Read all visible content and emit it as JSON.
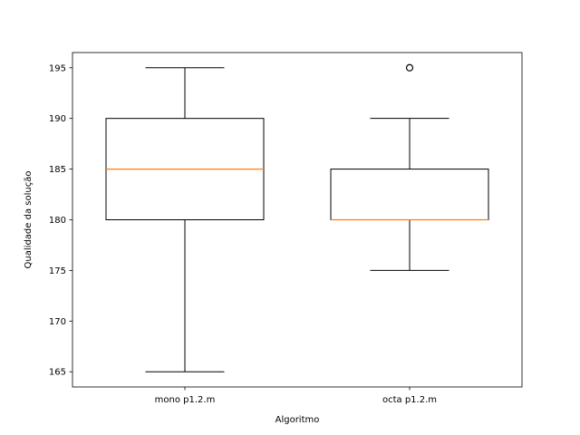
{
  "chart_data": {
    "type": "boxplot",
    "title": "",
    "xlabel": "Algoritmo",
    "ylabel": "Qualidade da solução",
    "ylim": [
      163.5,
      196.5
    ],
    "yticks": [
      165,
      170,
      175,
      180,
      185,
      190,
      195
    ],
    "grid": false,
    "legend": "none",
    "categories": [
      "mono p1.2.m",
      "octa p1.2.m"
    ],
    "boxes": [
      {
        "whisker_low": 165,
        "q1": 180,
        "median": 185,
        "q3": 190,
        "whisker_high": 195,
        "outliers": []
      },
      {
        "whisker_low": 175,
        "q1": 180,
        "median": 180,
        "q3": 185,
        "whisker_high": 190,
        "outliers": [
          195
        ]
      }
    ],
    "colors": {
      "box": "#000000",
      "median": "#ff7f0e",
      "outlier": "#000000"
    }
  }
}
